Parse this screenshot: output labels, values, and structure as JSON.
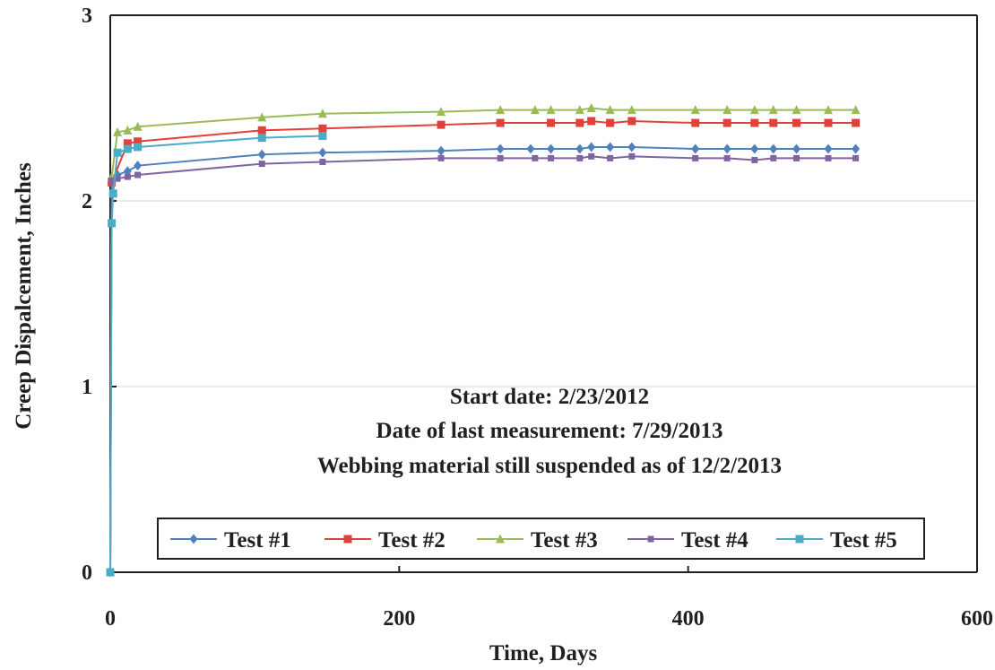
{
  "chart_data": {
    "type": "line",
    "title": "",
    "xlabel": "Time, Days",
    "ylabel": "Creep Dispalcement, Inches",
    "xlim": [
      0,
      600
    ],
    "ylim": [
      0,
      3
    ],
    "xticks": [
      0,
      200,
      400,
      600
    ],
    "yticks": [
      0,
      1,
      2,
      3
    ],
    "xtick_labels": [
      "0",
      "200",
      "400",
      "600"
    ],
    "ytick_labels": [
      "0",
      "1",
      "2",
      "3"
    ],
    "grid": "horizontal",
    "legend_position": "bottom",
    "annotations": [
      "Start date: 2/23/2012",
      "Date of last measurement: 7/29/2013",
      "Webbing material still suspended as of 12/2/2013"
    ],
    "series": [
      {
        "name": "Test #1",
        "color": "#4f81bd",
        "marker": "diamond",
        "x": [
          0,
          1,
          5,
          12,
          19,
          105,
          147,
          229,
          270,
          291,
          305,
          325,
          333,
          346,
          361,
          405,
          427,
          446,
          459,
          475,
          497,
          516
        ],
        "y": [
          0,
          2.12,
          2.14,
          2.16,
          2.19,
          2.25,
          2.26,
          2.27,
          2.28,
          2.28,
          2.28,
          2.28,
          2.29,
          2.29,
          2.29,
          2.28,
          2.28,
          2.28,
          2.28,
          2.28,
          2.28,
          2.28
        ]
      },
      {
        "name": "Test #2",
        "color": "#e0413a",
        "marker": "square",
        "x": [
          0,
          1,
          12,
          19,
          105,
          147,
          229,
          270,
          305,
          325,
          333,
          346,
          361,
          405,
          427,
          446,
          459,
          475,
          497,
          516
        ],
        "y": [
          0,
          2.1,
          2.31,
          2.32,
          2.38,
          2.39,
          2.41,
          2.42,
          2.42,
          2.42,
          2.43,
          2.42,
          2.43,
          2.42,
          2.42,
          2.42,
          2.42,
          2.42,
          2.42,
          2.42
        ]
      },
      {
        "name": "Test #3",
        "color": "#9bbb59",
        "marker": "triangle",
        "x": [
          0,
          1,
          5,
          12,
          19,
          105,
          147,
          229,
          270,
          294,
          305,
          325,
          333,
          346,
          361,
          405,
          427,
          446,
          459,
          475,
          497,
          516
        ],
        "y": [
          0,
          2.13,
          2.37,
          2.38,
          2.4,
          2.45,
          2.47,
          2.48,
          2.49,
          2.49,
          2.49,
          2.49,
          2.5,
          2.49,
          2.49,
          2.49,
          2.49,
          2.49,
          2.49,
          2.49,
          2.49,
          2.49
        ]
      },
      {
        "name": "Test #4",
        "color": "#8064a2",
        "marker": "x",
        "x": [
          0,
          1,
          5,
          12,
          19,
          105,
          147,
          229,
          270,
          294,
          305,
          325,
          333,
          346,
          361,
          405,
          427,
          446,
          459,
          475,
          497,
          516
        ],
        "y": [
          0,
          2.11,
          2.12,
          2.13,
          2.14,
          2.2,
          2.21,
          2.23,
          2.23,
          2.23,
          2.23,
          2.23,
          2.24,
          2.23,
          2.24,
          2.23,
          2.23,
          2.22,
          2.23,
          2.23,
          2.23,
          2.23
        ]
      },
      {
        "name": "Test #5",
        "color": "#4bacc6",
        "marker": "square",
        "x": [
          0,
          1,
          2,
          5,
          12,
          19,
          105,
          147
        ],
        "y": [
          0,
          1.88,
          2.04,
          2.26,
          2.28,
          2.29,
          2.34,
          2.35
        ]
      }
    ]
  }
}
